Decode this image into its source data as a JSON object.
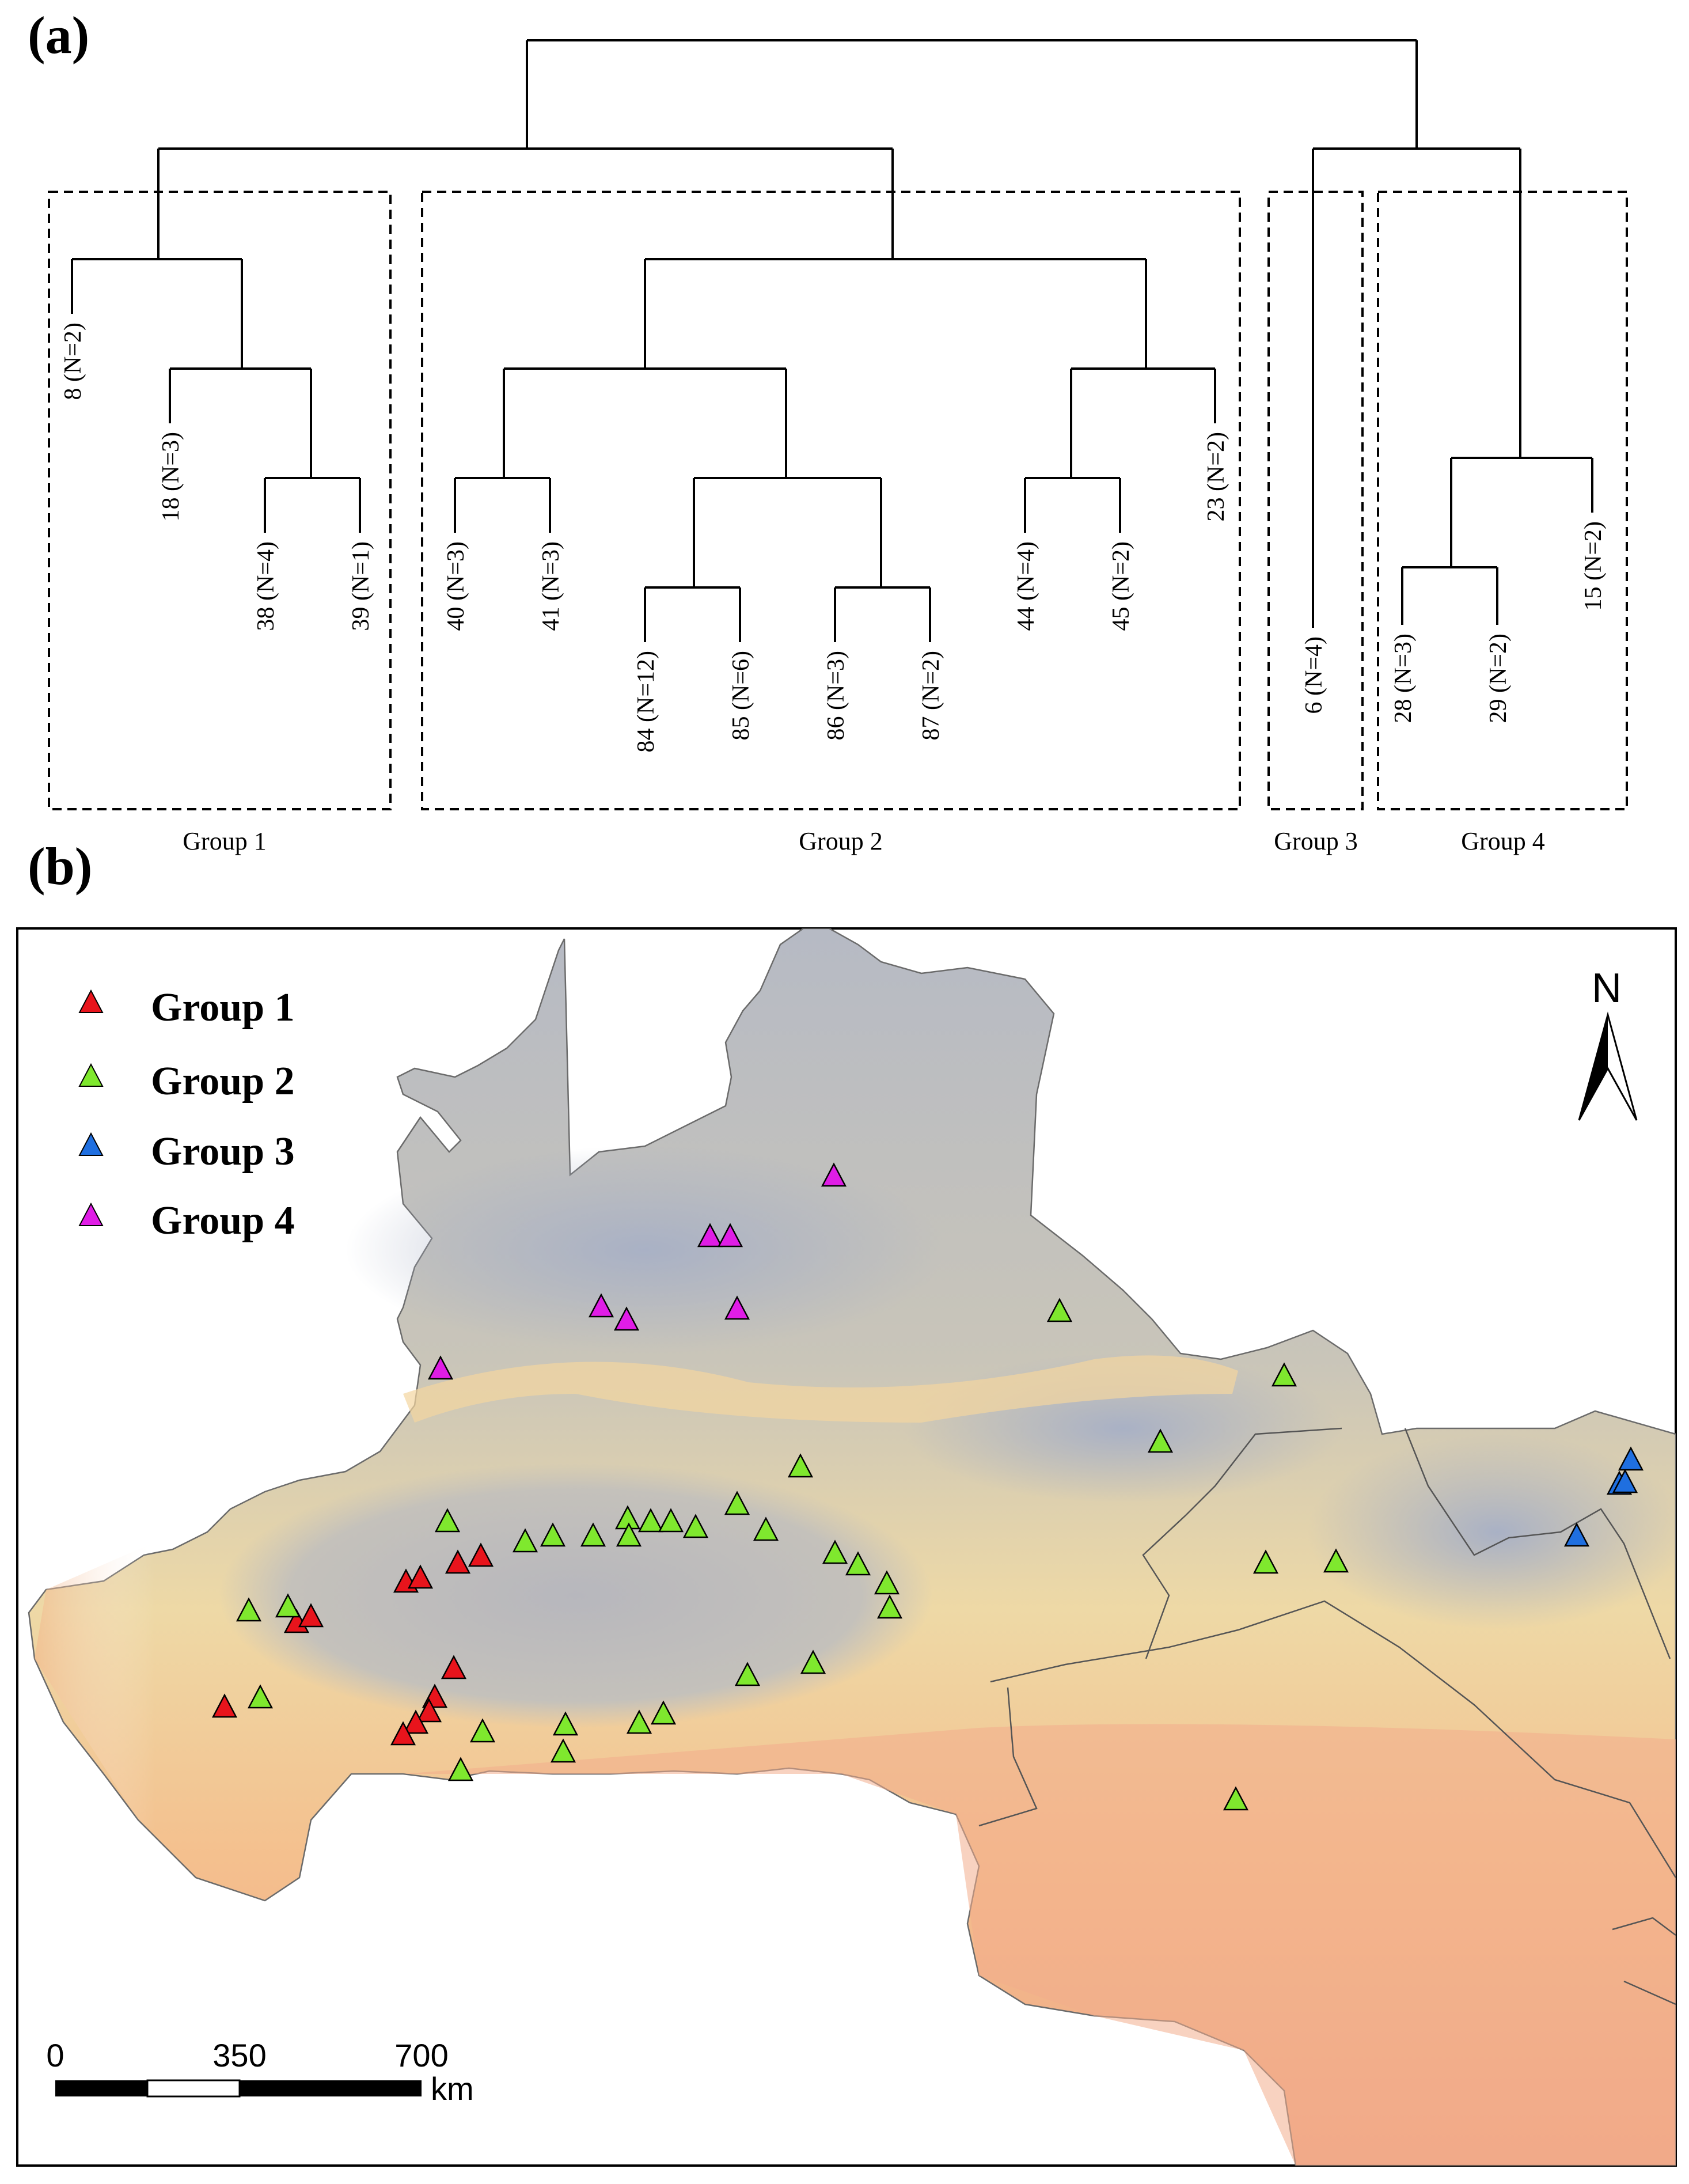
{
  "panel_a": {
    "label": "(a)",
    "groups": [
      {
        "name": "Group 1",
        "leaves": [
          "8 (N=2)",
          "18 (N=3)",
          "38 (N=4)",
          "39 (N=1)"
        ]
      },
      {
        "name": "Group 2",
        "leaves": [
          "40 (N=3)",
          "41 (N=3)",
          "84 (N=12)",
          "85 (N=6)",
          "86 (N=3)",
          "87 (N=2)",
          "44 (N=4)",
          "45 (N=2)",
          "23 (N=2)"
        ]
      },
      {
        "name": "Group 3",
        "leaves": [
          "6 (N=4)"
        ]
      },
      {
        "name": "Group 4",
        "leaves": [
          "28 (N=3)",
          "29 (N=2)",
          "15 (N=2)"
        ]
      }
    ]
  },
  "panel_b": {
    "label": "(b)",
    "legend": [
      {
        "label": "Group 1",
        "color": "#e8141c"
      },
      {
        "label": "Group 2",
        "color": "#7fe82e"
      },
      {
        "label": "Group 3",
        "color": "#1f6fe0"
      },
      {
        "label": "Group 4",
        "color": "#e01de6"
      }
    ],
    "north_label": "N",
    "scale_bar": {
      "ticks": [
        "0",
        "350",
        "700"
      ],
      "unit": "km"
    }
  }
}
